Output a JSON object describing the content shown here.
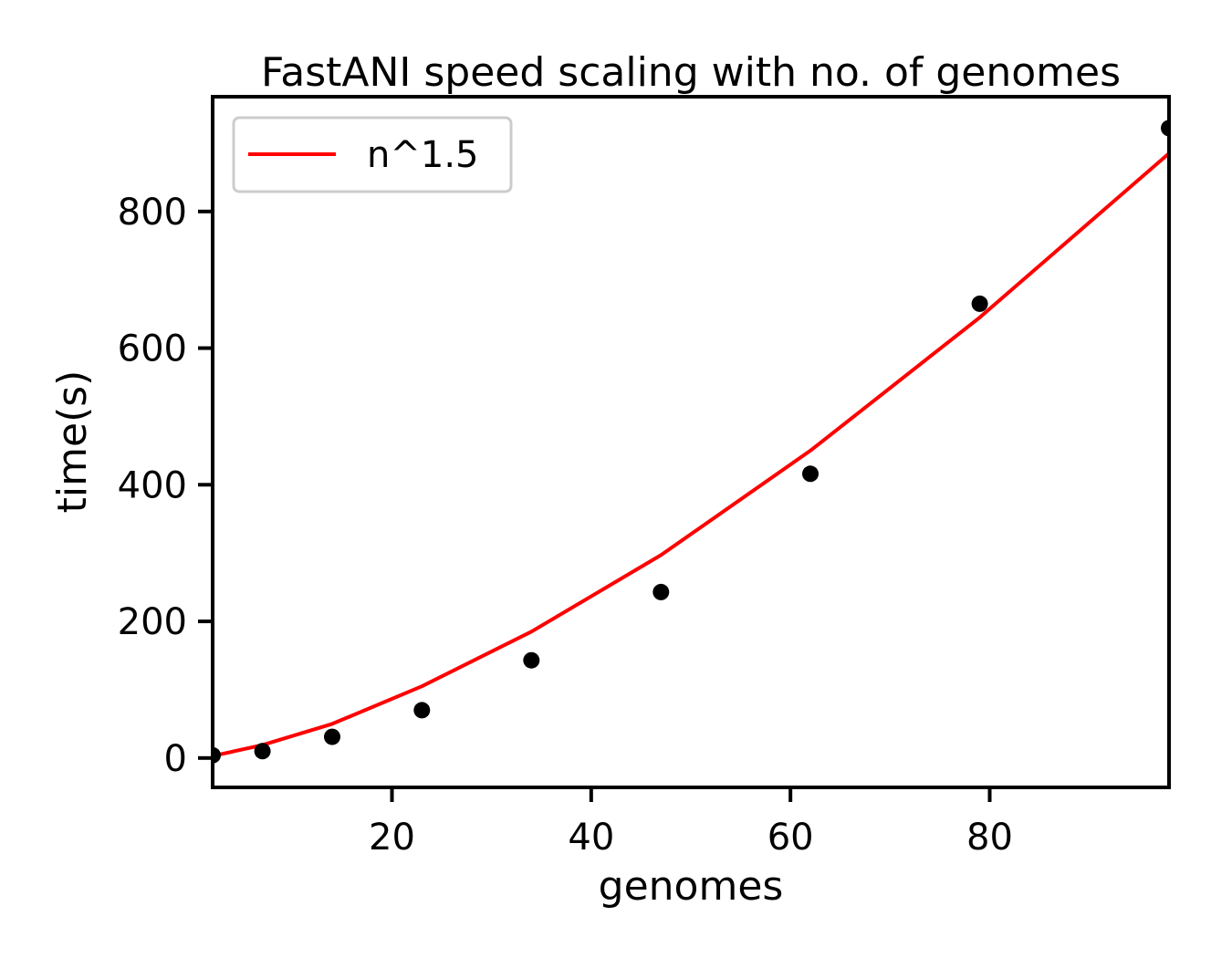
{
  "chart_data": {
    "type": "scatter",
    "title": "FastANI speed scaling with no. of genomes",
    "xlabel": "genomes",
    "ylabel": "time(s)",
    "xlim": [
      2,
      98
    ],
    "ylim": [
      -43,
      968
    ],
    "xticks": [
      20,
      40,
      60,
      80
    ],
    "yticks": [
      0,
      200,
      400,
      600,
      800
    ],
    "grid": false,
    "legend_position": "top-left",
    "fit_line": {
      "name": "n^1.5",
      "color": "#ff0000",
      "x": [
        2,
        7,
        14,
        23,
        34,
        47,
        62,
        79,
        98
      ],
      "y": [
        3,
        19,
        50,
        105,
        185,
        297,
        450,
        645,
        885
      ]
    },
    "points": {
      "color": "#000000",
      "x": [
        2,
        7,
        14,
        23,
        34,
        47,
        62,
        79,
        98
      ],
      "y": [
        4,
        10,
        31,
        70,
        143,
        243,
        416,
        665,
        922
      ]
    }
  }
}
